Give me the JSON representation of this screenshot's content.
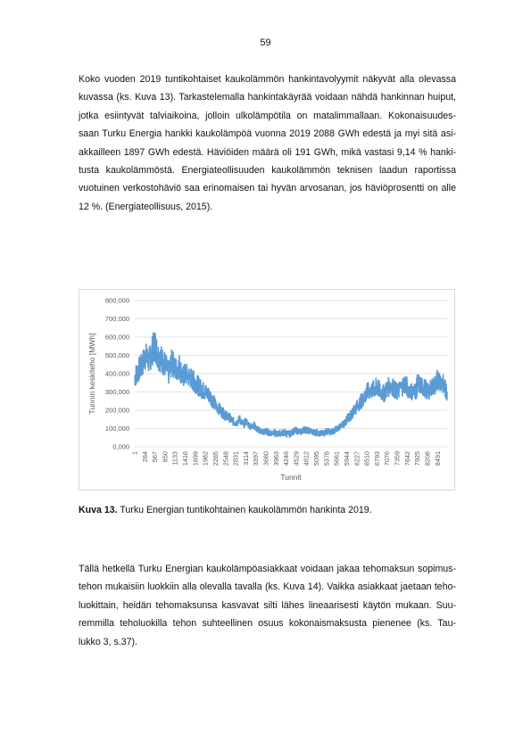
{
  "page_number": "59",
  "paragraph1_lines": [
    "Koko vuoden 2019 tuntikohtaiset kaukolämmön hankintavolyymit näkyvät alla olevassa",
    "kuvassa (ks. Kuva 13). Tarkastelemalla hankintakäyrää voidaan nähdä hankinnan huiput,",
    "jotka esiintyvät talviaikoina, jolloin ulkolämpötila on matalimmallaan. Kokonaisuudes-",
    "saan Turku Energia hankki kaukolämpöä vuonna 2019 2088 GWh edestä ja myi sitä asi-",
    "akkailleen 1897 GWh edestä. Häviöiden määrä oli 191 GWh, mikä vastasi 9,14 % hanki-",
    "tusta kaukolämmöstä.  Energiateollisuuden kaukolämmön teknisen laadun raportissa",
    "vuotuinen verkostohäviö saa erinomaisen tai hyvän arvosanan, jos häviöprosentti on alle",
    "12 %. (Energiateollisuus, 2015)."
  ],
  "caption": {
    "label": "Kuva 13.",
    "text": " Turku Energian tuntikohtainen kaukolämmön hankinta 2019."
  },
  "paragraph2_lines": [
    "Tällä hetkellä Turku Energian kaukolämpöasiakkaat voidaan jakaa tehomaksun sopimus-",
    "tehon mukaisiin luokkiin alla olevalla tavalla (ks. Kuva 14). Vaikka asiakkaat jaetaan teho-",
    "luokittain, heidän tehomaksunsa kasvavat silti lähes lineaarisesti käytön mukaan. Suu-",
    "remmilla teholuokilla tehon suhteellinen osuus kokonaismaksusta pienenee (ks. Tau-",
    "lukko 3, s.37)."
  ],
  "chart_data": {
    "type": "line",
    "title": "",
    "xlabel": "Tunnit",
    "ylabel": "Tunnin keskiteho [MWh]",
    "ylim": [
      0,
      800000
    ],
    "xlim": [
      1,
      8760
    ],
    "y_ticks": [
      "0,000",
      "100,000",
      "200,000",
      "300,000",
      "400,000",
      "500,000",
      "600,000",
      "700,000",
      "800,000"
    ],
    "x_ticks": [
      1,
      284,
      567,
      850,
      1133,
      1416,
      1699,
      1982,
      2265,
      2548,
      2831,
      3114,
      3397,
      3680,
      3963,
      4246,
      4529,
      4812,
      5095,
      5378,
      5661,
      5944,
      6227,
      6510,
      6793,
      7076,
      7359,
      7642,
      7925,
      8208,
      8491
    ],
    "grid": true,
    "legend": "none",
    "color": "#5b9bd5",
    "series": [
      {
        "x": [
          1,
          100,
          200,
          284,
          400,
          500,
          567,
          650,
          750,
          850,
          950,
          1050,
          1133,
          1250,
          1350,
          1416,
          1550,
          1650,
          1699,
          1800,
          1900,
          1982,
          2100,
          2200,
          2265,
          2400,
          2500,
          2548,
          2650,
          2750,
          2831,
          2950,
          3050,
          3114,
          3250,
          3350,
          3397,
          3500,
          3600,
          3680,
          3800,
          3900,
          3963,
          4100,
          4200,
          4246,
          4350,
          4450,
          4529,
          4650,
          4750,
          4812,
          4950,
          5050,
          5095,
          5200,
          5300,
          5378,
          5500,
          5600,
          5661,
          5800,
          5900,
          5944,
          6050,
          6150,
          6227,
          6350,
          6450,
          6510,
          6650,
          6750,
          6793,
          6900,
          7000,
          7076,
          7200,
          7300,
          7359,
          7500,
          7600,
          7642,
          7800,
          7900,
          7925,
          8050,
          8150,
          8208,
          8350,
          8450,
          8491,
          8600,
          8700,
          8760
        ],
        "y": [
          380000,
          420000,
          440000,
          500000,
          470000,
          530000,
          560000,
          500000,
          480000,
          450000,
          400000,
          470000,
          420000,
          440000,
          380000,
          400000,
          380000,
          360000,
          350000,
          330000,
          310000,
          300000,
          280000,
          250000,
          230000,
          200000,
          180000,
          170000,
          160000,
          140000,
          130000,
          150000,
          120000,
          140000,
          110000,
          120000,
          100000,
          90000,
          80000,
          85000,
          75000,
          80000,
          70000,
          75000,
          80000,
          72000,
          70000,
          85000,
          90000,
          80000,
          95000,
          90000,
          85000,
          75000,
          80000,
          70000,
          75000,
          85000,
          80000,
          90000,
          95000,
          120000,
          130000,
          150000,
          170000,
          200000,
          220000,
          250000,
          270000,
          300000,
          310000,
          320000,
          330000,
          300000,
          290000,
          320000,
          340000,
          310000,
          300000,
          330000,
          350000,
          320000,
          300000,
          310000,
          350000,
          330000,
          320000,
          300000,
          330000,
          340000,
          370000,
          360000,
          320000,
          300000
        ]
      }
    ]
  }
}
